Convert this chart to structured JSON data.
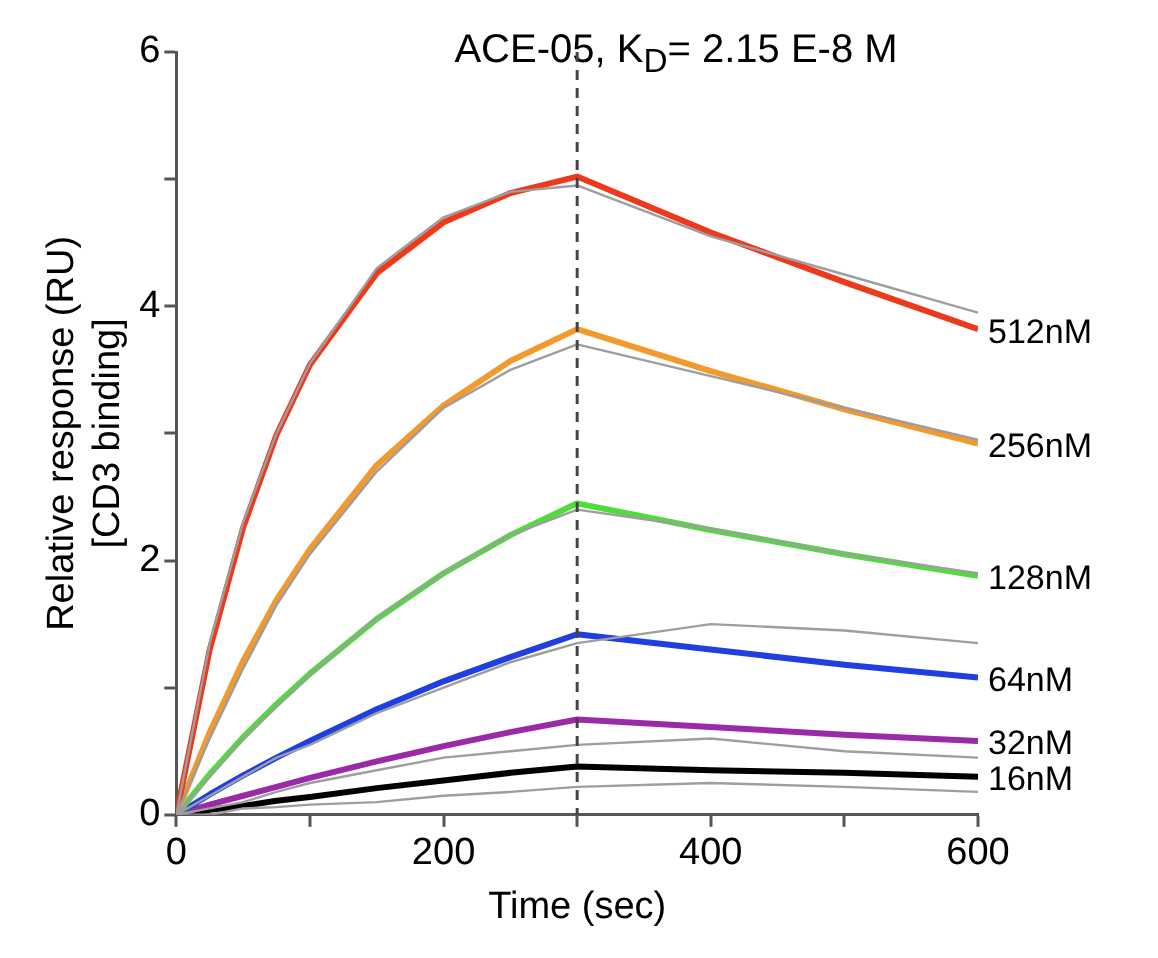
{
  "chart_data": {
    "type": "line",
    "title": "ACE-05, K$_{D}$= 2.15 E-8 M",
    "xlabel": "Time (sec)",
    "ylabel": "Relative response (RU)\n[CD3 binding]",
    "x": [
      0,
      25,
      50,
      75,
      100,
      150,
      200,
      250,
      300,
      400,
      500,
      600
    ],
    "xlim": [
      0,
      600
    ],
    "xticks": [
      0,
      {
        "value": 100,
        "label": null
      },
      200,
      {
        "value": 300,
        "label": null
      },
      400,
      {
        "value": 500,
        "label": null
      },
      600
    ],
    "ylim": [
      0,
      6
    ],
    "yticks": [
      0,
      {
        "value": 1,
        "label": null
      },
      2,
      {
        "value": 3,
        "label": null
      },
      4,
      {
        "value": 5,
        "label": null
      },
      6
    ],
    "grid": false,
    "legend": false,
    "series": [
      {
        "color": "#9e9e9e",
        "values": [
          0,
          1.35,
          2.3,
          3.0,
          3.55,
          4.3,
          4.7,
          4.9,
          4.95,
          4.55,
          4.25,
          3.95
        ]
      },
      {
        "color": "#9e9e9e",
        "values": [
          0,
          0.6,
          1.15,
          1.65,
          2.05,
          2.7,
          3.2,
          3.5,
          3.7,
          3.45,
          3.2,
          2.95
        ]
      },
      {
        "color": "#9e9e9e",
        "values": [
          0,
          0.3,
          0.6,
          0.85,
          1.1,
          1.55,
          1.9,
          2.2,
          2.4,
          2.25,
          2.05,
          1.9
        ]
      },
      {
        "color": "#9e9e9e",
        "values": [
          0,
          0.15,
          0.3,
          0.45,
          0.55,
          0.8,
          1.0,
          1.2,
          1.35,
          1.5,
          1.45,
          1.35
        ]
      },
      {
        "color": "#9e9e9e",
        "values": [
          0,
          0.05,
          0.1,
          0.18,
          0.25,
          0.35,
          0.45,
          0.5,
          0.55,
          0.6,
          0.5,
          0.45
        ]
      },
      {
        "color": "#9e9e9e",
        "values": [
          0,
          0.0,
          0.05,
          0.06,
          0.08,
          0.1,
          0.15,
          0.18,
          0.22,
          0.25,
          0.22,
          0.18
        ]
      },
      {
        "name": "512nM",
        "color": "#ee3a1c",
        "values": [
          0,
          1.3,
          2.26,
          2.99,
          3.54,
          4.26,
          4.66,
          4.89,
          5.02,
          4.58,
          4.19,
          3.82
        ]
      },
      {
        "name": "256nM",
        "color": "#f39a2e",
        "values": [
          0,
          0.65,
          1.21,
          1.69,
          2.09,
          2.75,
          3.22,
          3.57,
          3.82,
          3.49,
          3.19,
          2.92
        ]
      },
      {
        "name": "128nM",
        "color": "#4fdc3c",
        "values": [
          0,
          0.32,
          0.61,
          0.87,
          1.11,
          1.54,
          1.9,
          2.2,
          2.45,
          2.24,
          2.05,
          1.88
        ]
      },
      {
        "name": "64nM",
        "color": "#1f3fe0",
        "values": [
          0,
          0.16,
          0.31,
          0.45,
          0.58,
          0.83,
          1.05,
          1.24,
          1.42,
          1.3,
          1.18,
          1.08
        ]
      },
      {
        "name": "32nM",
        "color": "#9b2aa6",
        "values": [
          0,
          0.08,
          0.15,
          0.22,
          0.29,
          0.42,
          0.54,
          0.65,
          0.75,
          0.69,
          0.63,
          0.58
        ]
      },
      {
        "name": "16nM",
        "color": "#000000",
        "values": [
          0,
          0.04,
          0.07,
          0.11,
          0.14,
          0.21,
          0.27,
          0.33,
          0.38,
          0.35,
          0.33,
          0.3
        ]
      }
    ],
    "ref_lines": [
      {
        "axis": "x",
        "value": 300,
        "color": "#444444",
        "line_style": "dashed"
      }
    ]
  }
}
